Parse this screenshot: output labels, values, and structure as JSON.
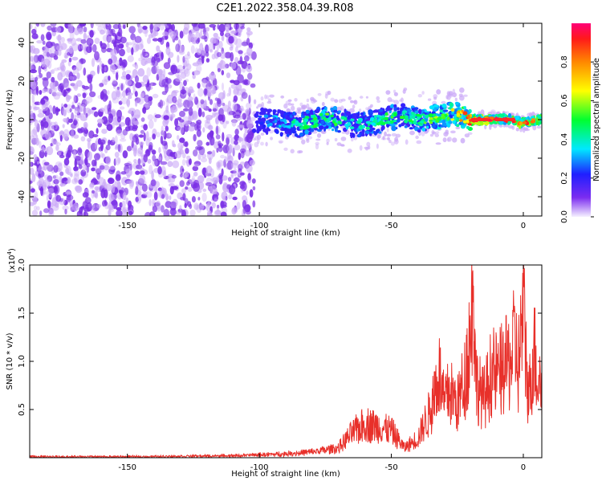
{
  "title": "C2E1.2022.358.04.39.R08",
  "chart_data": [
    {
      "type": "heatmap",
      "xlabel": "Height of straight line (km)",
      "ylabel": "Frequency (Hz)",
      "xlim": [
        -187,
        7
      ],
      "ylim": [
        -50,
        50
      ],
      "xticks": [
        -150,
        -100,
        -50,
        0
      ],
      "yticks": [
        -40,
        -20,
        0,
        20,
        40
      ],
      "colorbar": {
        "label": "Normalized spectral amplitude",
        "range": [
          0.0,
          1.0
        ],
        "ticks": [
          0.0,
          0.2,
          0.4,
          0.6,
          0.8
        ]
      },
      "colors": {
        "noise": "#7a2fe6",
        "signal_core": "#ff2a2a"
      },
      "ridge": {
        "x": [
          -102,
          -95,
          -90,
          -85,
          -80,
          -75,
          -70,
          -65,
          -60,
          -55,
          -50,
          -45,
          -40,
          -35,
          -30,
          -25,
          -20,
          -15,
          -10,
          -5,
          0,
          5
        ],
        "y": [
          0,
          -1,
          -2,
          -3,
          -1,
          1,
          0,
          -3,
          -2,
          -1,
          1,
          2,
          0,
          1,
          2,
          3,
          0,
          0,
          0,
          0,
          -2,
          0
        ],
        "amp": [
          0.2,
          0.3,
          0.35,
          0.45,
          0.45,
          0.5,
          0.45,
          0.35,
          0.4,
          0.45,
          0.5,
          0.45,
          0.45,
          0.55,
          0.6,
          0.65,
          0.85,
          0.9,
          0.9,
          0.85,
          0.85,
          0.8
        ]
      }
    },
    {
      "type": "line",
      "xlabel": "Height of straight line (km)",
      "ylabel": "SNR (10 * v/v)",
      "multiplier_label": "(x10",
      "multiplier_exp": "4",
      "xlim": [
        -187,
        7
      ],
      "ylim": [
        0,
        2.0
      ],
      "xticks": [
        -150,
        -100,
        -50,
        0
      ],
      "yticks": [
        0.5,
        1.0,
        1.5,
        2.0
      ],
      "ytick_labels": [
        "0.5",
        "1.0",
        "1.5",
        "2.0"
      ],
      "color": "#e8302a",
      "x": [
        -187,
        -150,
        -110,
        -100,
        -90,
        -80,
        -70,
        -65,
        -60,
        -55,
        -50,
        -45,
        -40,
        -35,
        -32,
        -30,
        -28,
        -25,
        -22,
        -20,
        -19,
        -18,
        -15,
        -12,
        -10,
        -5,
        -3,
        -2,
        0,
        2,
        4,
        5,
        7
      ],
      "y": [
        0.01,
        0.01,
        0.02,
        0.03,
        0.04,
        0.06,
        0.1,
        0.25,
        0.35,
        0.32,
        0.28,
        0.1,
        0.2,
        0.5,
        0.9,
        0.55,
        0.7,
        0.55,
        0.85,
        1.3,
        2.0,
        0.8,
        0.6,
        0.9,
        0.85,
        1.0,
        1.2,
        0.9,
        1.55,
        0.6,
        1.15,
        0.9,
        0.75
      ]
    }
  ]
}
